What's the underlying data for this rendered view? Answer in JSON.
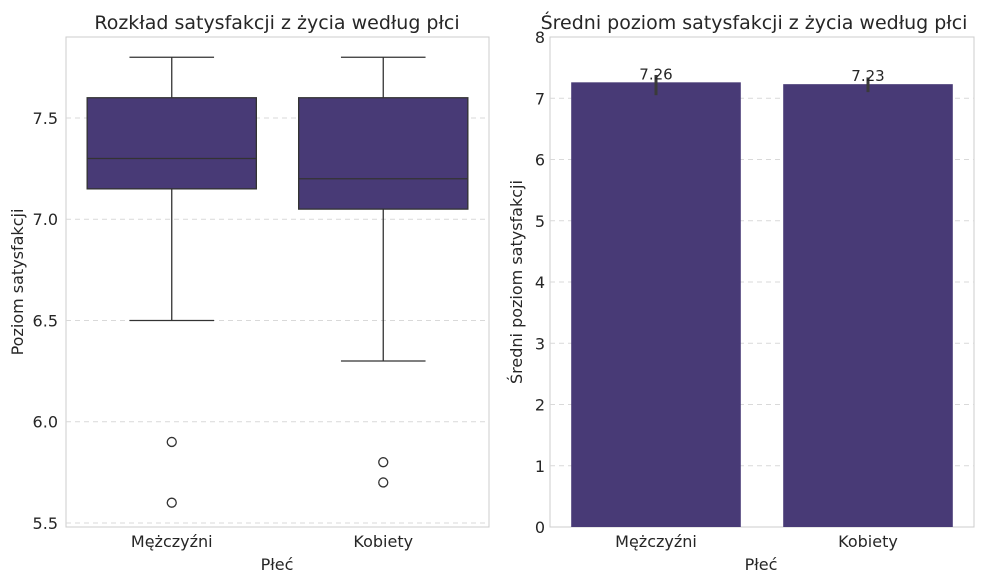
{
  "chart_data": [
    {
      "type": "box",
      "title": "Rozkład satysfakcji z życia według płci",
      "xlabel": "Płeć",
      "ylabel": "Poziom satysfakcji",
      "categories": [
        "Mężczyźni",
        "Kobiety"
      ],
      "ylim": [
        5.48,
        7.9
      ],
      "yticks": [
        5.5,
        6.0,
        6.5,
        7.0,
        7.5
      ],
      "ytick_labels": [
        "5.5",
        "6.0",
        "6.5",
        "7.0",
        "7.5"
      ],
      "grid": "horizontal dashed",
      "boxes": [
        {
          "category": "Mężczyźni",
          "whisker_low": 6.5,
          "q1": 7.15,
          "median": 7.3,
          "q3": 7.6,
          "whisker_high": 7.8,
          "outliers": [
            5.9,
            5.6
          ]
        },
        {
          "category": "Kobiety",
          "whisker_low": 6.3,
          "q1": 7.05,
          "median": 7.2,
          "q3": 7.6,
          "whisker_high": 7.8,
          "outliers": [
            5.8,
            5.7
          ]
        }
      ],
      "color": "#483a76"
    },
    {
      "type": "bar",
      "title": "Średni poziom satysfakcji z życia według płci",
      "xlabel": "Płeć",
      "ylabel": "Średni poziom satysfakcji",
      "categories": [
        "Mężczyźni",
        "Kobiety"
      ],
      "values": [
        7.26,
        7.23
      ],
      "value_labels": [
        "7.26",
        "7.23"
      ],
      "error_bars": [
        [
          7.05,
          7.38
        ],
        [
          7.1,
          7.34
        ]
      ],
      "ylim": [
        0,
        8
      ],
      "yticks": [
        0,
        1,
        2,
        3,
        4,
        5,
        6,
        7,
        8
      ],
      "ytick_labels": [
        "0",
        "1",
        "2",
        "3",
        "4",
        "5",
        "6",
        "7",
        "8"
      ],
      "grid": "horizontal dashed",
      "color": "#483a76"
    }
  ]
}
